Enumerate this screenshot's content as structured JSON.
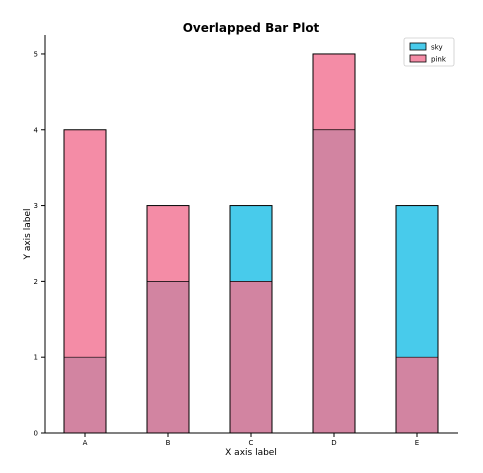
{
  "chart_data": {
    "type": "bar",
    "title": "Overlapped Bar Plot",
    "xlabel": "X axis label",
    "ylabel": "Y axis label",
    "categories": [
      "A",
      "B",
      "C",
      "D",
      "E"
    ],
    "series": [
      {
        "name": "sky",
        "values": [
          1,
          2,
          3,
          4,
          3
        ],
        "color": "#48cbeb"
      },
      {
        "name": "pink",
        "values": [
          4,
          3,
          2,
          5,
          1
        ],
        "color": "#f48ca6"
      }
    ],
    "overlap_color": "#d284a1",
    "ylim": [
      0,
      5.25
    ],
    "yticks": [
      0,
      1,
      2,
      3,
      4,
      5
    ],
    "grid": false,
    "legend_position": "top-right"
  }
}
